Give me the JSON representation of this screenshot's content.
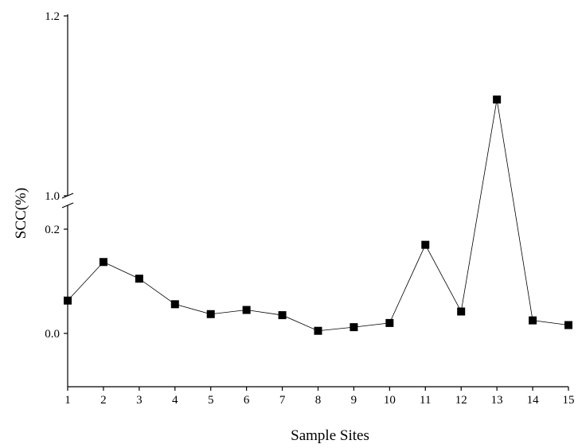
{
  "chart_data": {
    "type": "line",
    "xlabel": "Sample Sites",
    "ylabel": "SCC(%)",
    "x": [
      1,
      2,
      3,
      4,
      5,
      6,
      7,
      8,
      9,
      10,
      11,
      12,
      13,
      14,
      15
    ],
    "x_ticks": [
      "1",
      "2",
      "3",
      "4",
      "5",
      "6",
      "7",
      "8",
      "9",
      "10",
      "11",
      "12",
      "13",
      "14",
      "15"
    ],
    "series": [
      {
        "values": [
          0.063,
          0.137,
          0.105,
          0.056,
          0.037,
          0.045,
          0.035,
          0.005,
          0.012,
          0.02,
          0.17,
          0.042,
          1.107,
          0.025,
          0.016
        ],
        "color": "#000000",
        "marker": "square"
      }
    ],
    "y_axis_break": {
      "lower_segment": [
        -0.05,
        0.25
      ],
      "upper_segment": [
        1.0,
        1.2
      ]
    },
    "y_ticks": [
      {
        "value": 0.0,
        "label": "0.0"
      },
      {
        "value": 0.2,
        "label": "0.2"
      },
      {
        "value": 1.0,
        "label": "1.0"
      },
      {
        "value": 1.2,
        "label": "1.2"
      }
    ],
    "grid": false,
    "legend": "none"
  }
}
